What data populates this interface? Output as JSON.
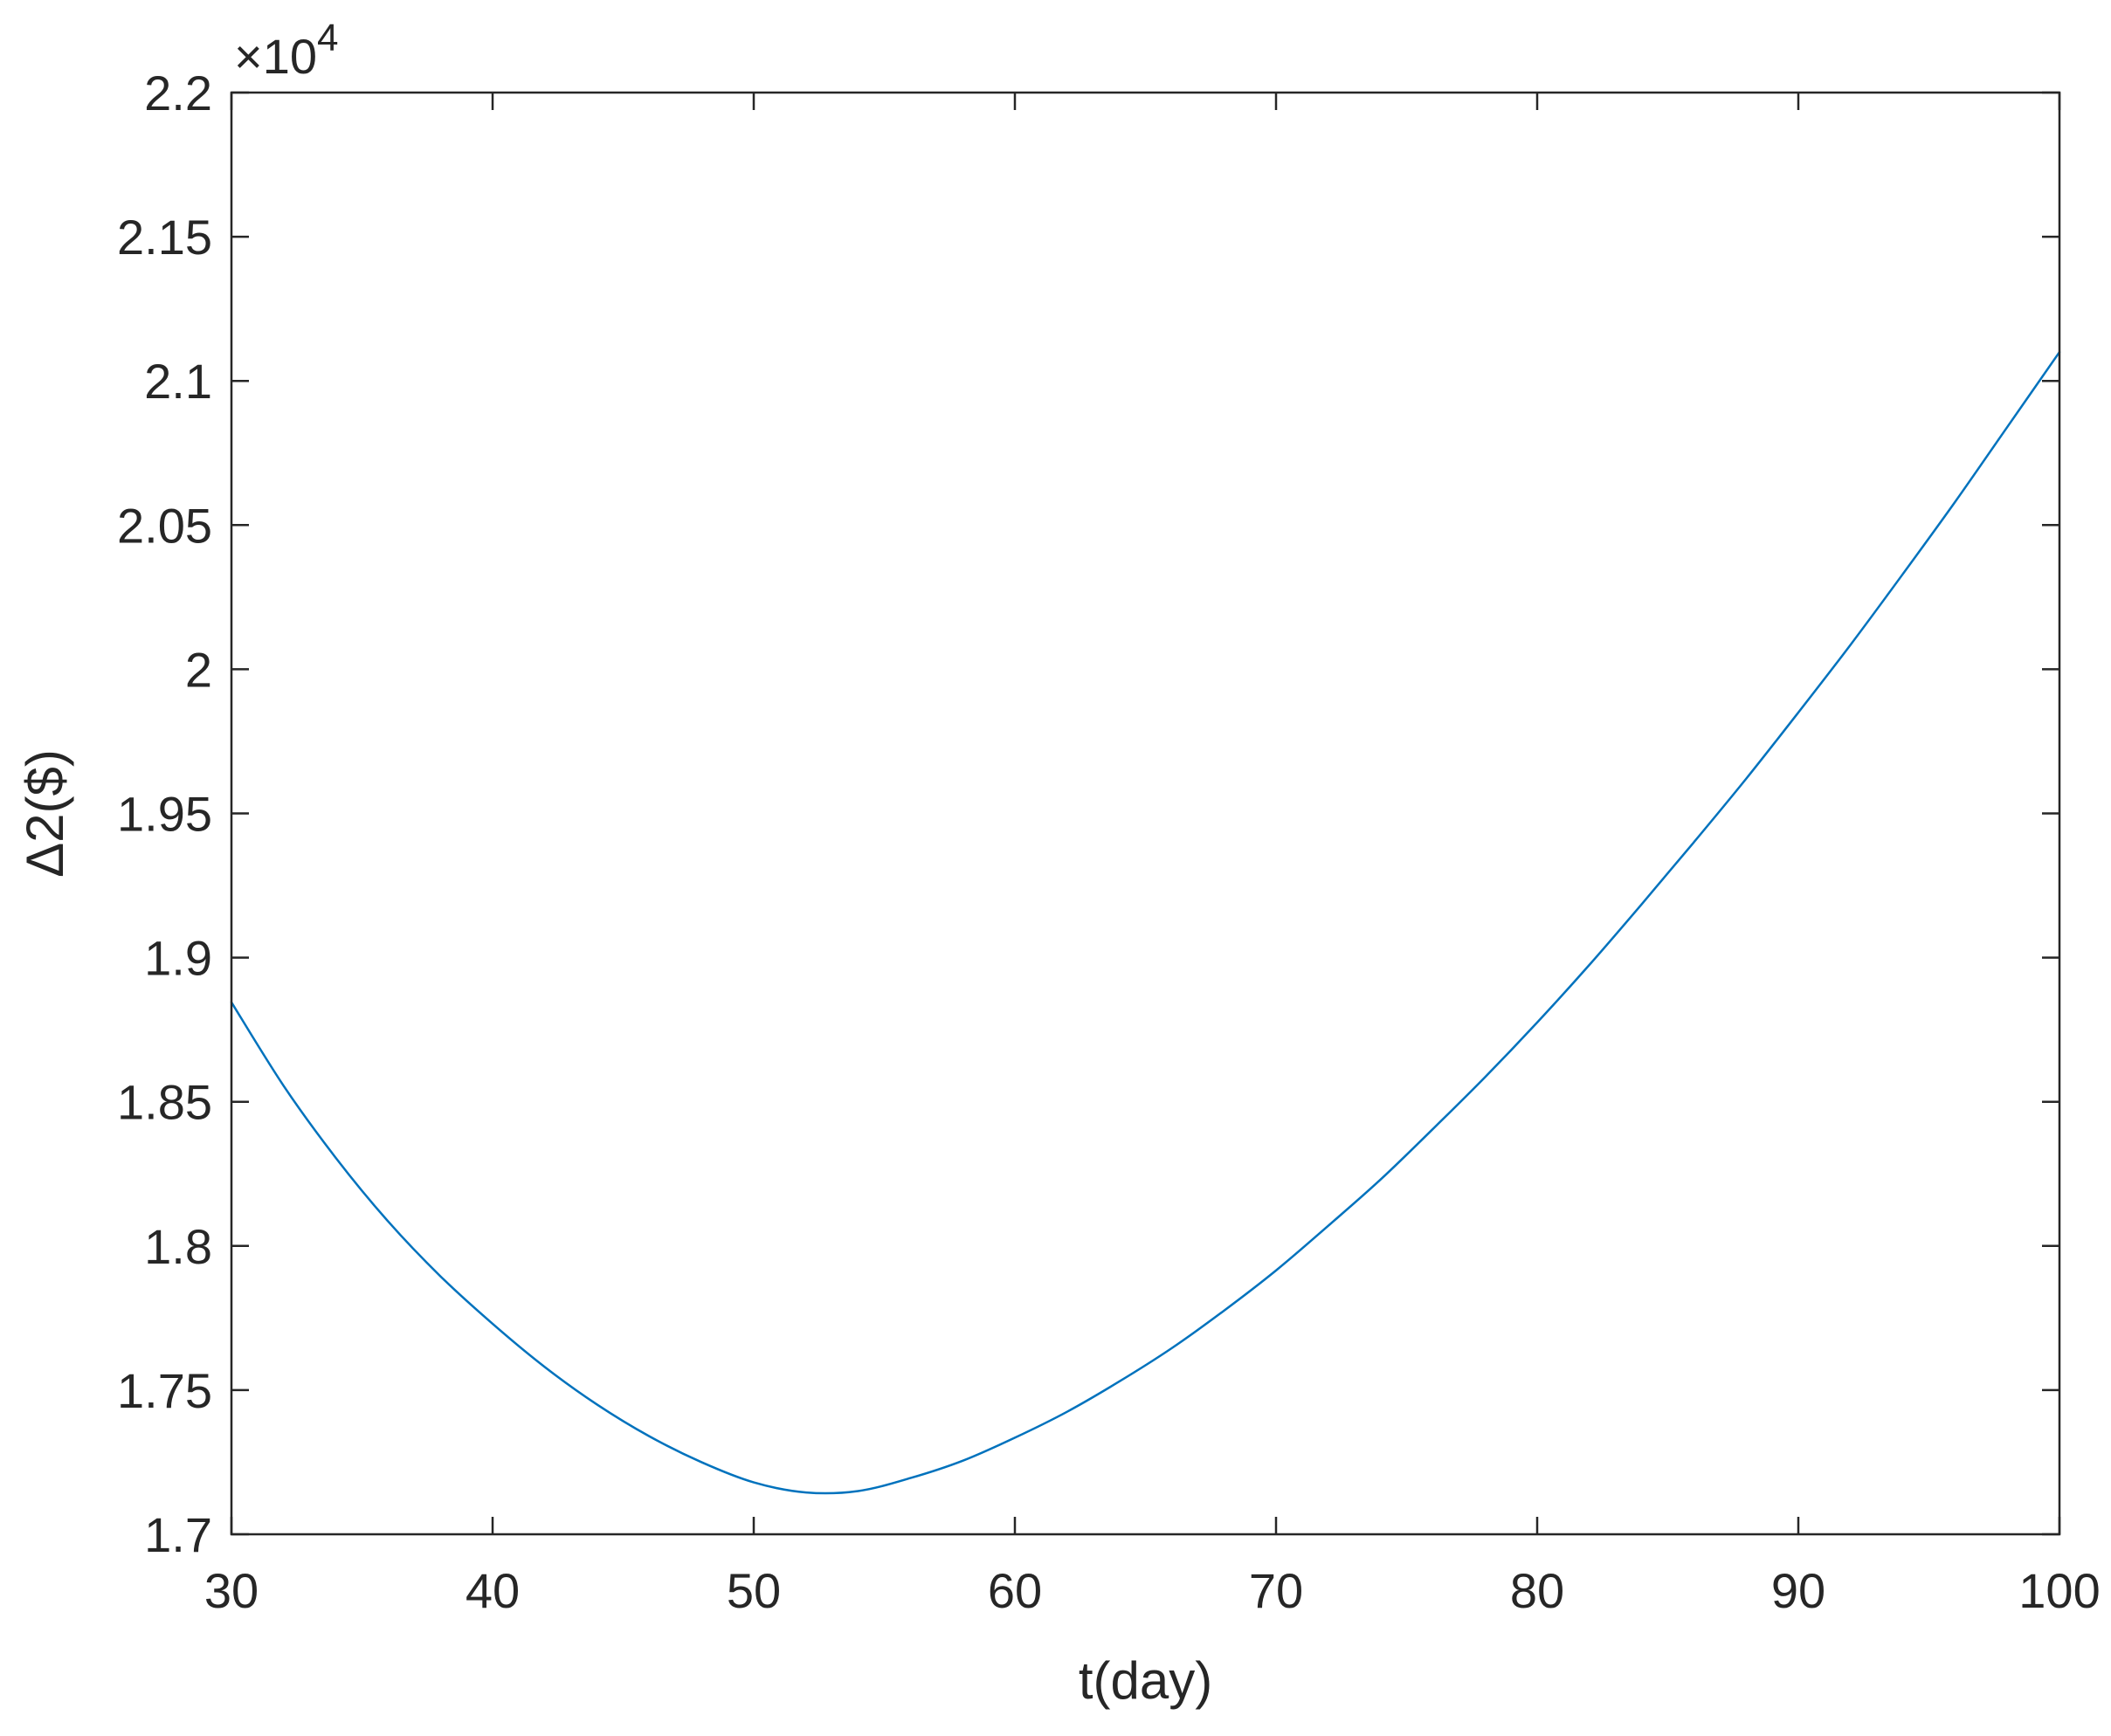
{
  "chart_data": {
    "type": "line",
    "xlabel": "t(day)",
    "ylabel": "Δ2($)",
    "y_exponent": {
      "prefix": "×10",
      "power": "4"
    },
    "xlim": [
      30,
      100
    ],
    "ylim": [
      1.7,
      2.2
    ],
    "x_ticks": [
      30,
      40,
      50,
      60,
      70,
      80,
      90,
      100
    ],
    "x_tick_labels": [
      "30",
      "40",
      "50",
      "60",
      "70",
      "80",
      "90",
      "100"
    ],
    "y_ticks": [
      1.7,
      1.75,
      1.8,
      1.85,
      1.9,
      1.95,
      2.0,
      2.05,
      2.1,
      2.15,
      2.2
    ],
    "y_tick_labels": [
      "1.7",
      "1.75",
      "1.8",
      "1.85",
      "1.9",
      "1.95",
      "2",
      "2.05",
      "2.1",
      "2.15",
      "2.2"
    ],
    "grid": false,
    "box": true,
    "series": [
      {
        "color": "#0072BD",
        "x": [
          30,
          32,
          34,
          36,
          38,
          40,
          42,
          44,
          46,
          48,
          50,
          52,
          54,
          56,
          58,
          60,
          62,
          64,
          66,
          68,
          70,
          72,
          74,
          76,
          78,
          80,
          82,
          84,
          86,
          88,
          90,
          92,
          94,
          96,
          98,
          100
        ],
        "y": [
          1.8845,
          1.8555,
          1.8305,
          1.8085,
          1.7895,
          1.773,
          1.758,
          1.745,
          1.734,
          1.725,
          1.718,
          1.7145,
          1.715,
          1.7195,
          1.7255,
          1.7335,
          1.7425,
          1.753,
          1.7645,
          1.7775,
          1.7915,
          1.807,
          1.823,
          1.8405,
          1.8585,
          1.8775,
          1.8975,
          1.9185,
          1.94,
          1.962,
          1.985,
          2.0085,
          2.033,
          2.058,
          2.084,
          2.11
        ]
      }
    ]
  }
}
